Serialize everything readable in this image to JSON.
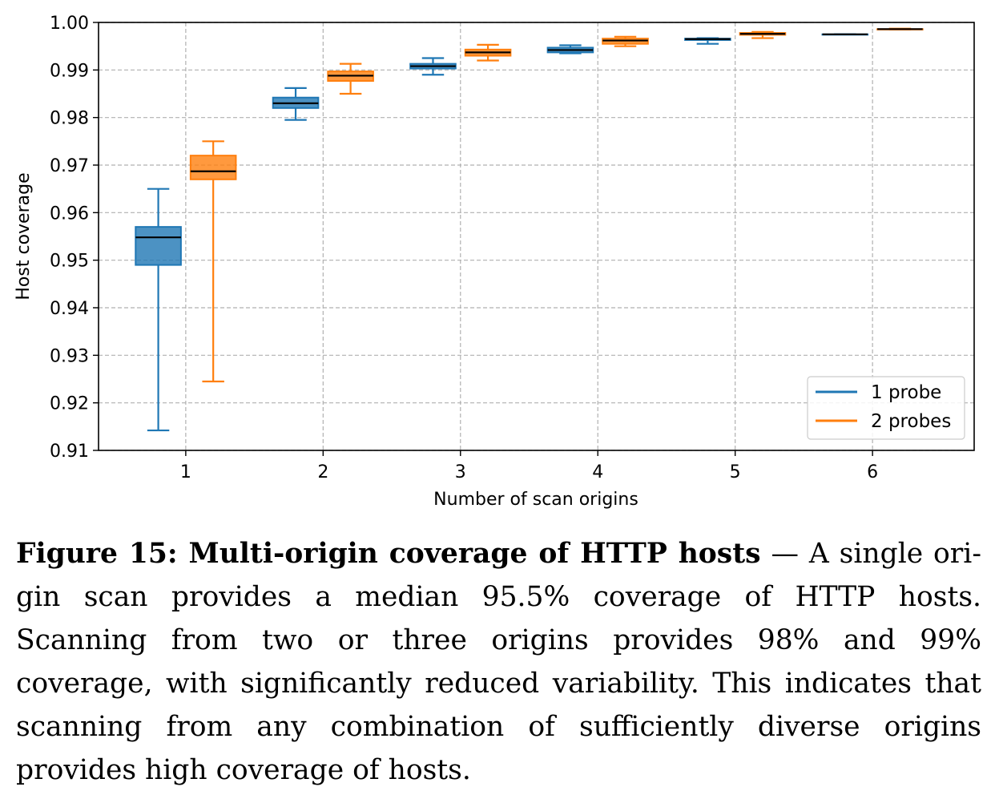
{
  "chart_data": {
    "type": "box",
    "xlabel": "Number of scan origins",
    "ylabel": "Host coverage",
    "categories": [
      "1",
      "2",
      "3",
      "4",
      "5",
      "6"
    ],
    "ylim": [
      0.91,
      1.0
    ],
    "yticks": [
      "0.91",
      "0.92",
      "0.93",
      "0.94",
      "0.95",
      "0.96",
      "0.97",
      "0.98",
      "0.99",
      "1.00"
    ],
    "grid": true,
    "legend_position": "lower-right",
    "series": [
      {
        "name": "1 probe",
        "color": "#1f77b4",
        "boxes": [
          {
            "whislo": 0.9142,
            "q1": 0.949,
            "med": 0.9548,
            "q3": 0.957,
            "whishi": 0.965
          },
          {
            "whislo": 0.9795,
            "q1": 0.982,
            "med": 0.983,
            "q3": 0.9842,
            "whishi": 0.9862
          },
          {
            "whislo": 0.989,
            "q1": 0.9903,
            "med": 0.9908,
            "q3": 0.9913,
            "whishi": 0.9925
          },
          {
            "whislo": 0.9935,
            "q1": 0.9937,
            "med": 0.9942,
            "q3": 0.9947,
            "whishi": 0.9952
          },
          {
            "whislo": 0.9955,
            "q1": 0.9963,
            "med": 0.9965,
            "q3": 0.9966,
            "whishi": 0.9967
          },
          {
            "whislo": 0.9975,
            "q1": 0.9975,
            "med": 0.9975,
            "q3": 0.9975,
            "whishi": 0.9975
          }
        ]
      },
      {
        "name": "2 probes",
        "color": "#ff7f0e",
        "boxes": [
          {
            "whislo": 0.9245,
            "q1": 0.967,
            "med": 0.9687,
            "q3": 0.972,
            "whishi": 0.975
          },
          {
            "whislo": 0.985,
            "q1": 0.9877,
            "med": 0.9888,
            "q3": 0.9897,
            "whishi": 0.9913
          },
          {
            "whislo": 0.992,
            "q1": 0.993,
            "med": 0.9937,
            "q3": 0.9943,
            "whishi": 0.9953
          },
          {
            "whislo": 0.995,
            "q1": 0.9955,
            "med": 0.9962,
            "q3": 0.9966,
            "whishi": 0.997
          },
          {
            "whislo": 0.9967,
            "q1": 0.9974,
            "med": 0.9976,
            "q3": 0.9978,
            "whishi": 0.998
          },
          {
            "whislo": 0.9985,
            "q1": 0.9985,
            "med": 0.9986,
            "q3": 0.9986,
            "whishi": 0.9987
          }
        ]
      }
    ]
  },
  "caption": {
    "label": "Figure 15: Multi-origin coverage of HTTP hosts",
    "separator": " — ",
    "text": "A single ori­gin scan provides a median 95.5% coverage of HTTP hosts. Scanning from two or three origins provides 98% and 99% coverage, with sig­nificantly reduced variability. This indicates that scanning from any combination of sufficiently diverse origins provides high coverage of hosts."
  }
}
